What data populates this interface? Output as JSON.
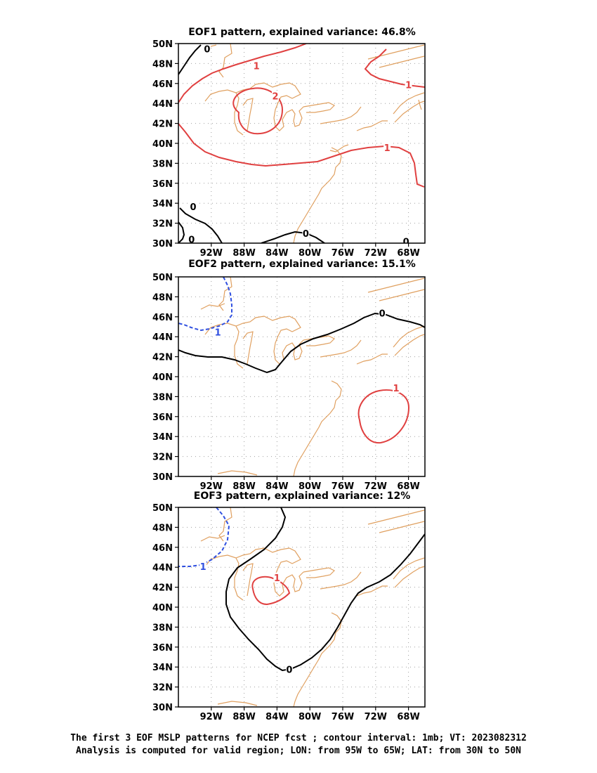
{
  "panels": [
    {
      "title": "EOF1 pattern, explained variance: 46.8%",
      "contour_labels": [
        {
          "text": "0",
          "color": "#000000",
          "lon": -92.5,
          "lat": 49.4
        },
        {
          "text": "1",
          "color": "#e04040",
          "lon": -86.5,
          "lat": 47.7
        },
        {
          "text": "2",
          "color": "#e04040",
          "lon": -84.2,
          "lat": 44.7
        },
        {
          "text": "1",
          "color": "#e04040",
          "lon": -68.0,
          "lat": 45.8
        },
        {
          "text": "1",
          "color": "#e04040",
          "lon": -70.6,
          "lat": 39.5
        },
        {
          "text": "0",
          "color": "#000000",
          "lon": -94.2,
          "lat": 33.6
        },
        {
          "text": "0",
          "color": "#000000",
          "lon": -94.4,
          "lat": 30.3
        },
        {
          "text": "0",
          "color": "#000000",
          "lon": -80.5,
          "lat": 30.9
        },
        {
          "text": "0",
          "color": "#000000",
          "lon": -68.3,
          "lat": 30.1
        }
      ]
    },
    {
      "title": "EOF2 pattern, explained variance: 15.1%",
      "contour_labels": [
        {
          "text": "1",
          "color": "#3050e0",
          "lon": -91.2,
          "lat": 44.4
        },
        {
          "text": "0",
          "color": "#000000",
          "lon": -71.2,
          "lat": 46.3
        },
        {
          "text": "1",
          "color": "#e04040",
          "lon": -69.5,
          "lat": 38.8
        }
      ]
    },
    {
      "title": "EOF3 pattern, explained variance: 12%",
      "contour_labels": [
        {
          "text": "1",
          "color": "#3050e0",
          "lon": -93.0,
          "lat": 44.0
        },
        {
          "text": "1",
          "color": "#e04040",
          "lon": -84.0,
          "lat": 42.9
        },
        {
          "text": "0",
          "color": "#000000",
          "lon": -82.5,
          "lat": 33.7
        }
      ]
    }
  ],
  "axes": {
    "lon_range": [
      -96,
      -66
    ],
    "lat_range": [
      30,
      50
    ],
    "x_ticks": [
      -92,
      -88,
      -84,
      -80,
      -76,
      -72,
      -68
    ],
    "x_tick_labels": [
      "92W",
      "88W",
      "84W",
      "80W",
      "76W",
      "72W",
      "68W"
    ],
    "y_ticks": [
      30,
      32,
      34,
      36,
      38,
      40,
      42,
      44,
      46,
      48,
      50
    ],
    "y_tick_labels": [
      "30N",
      "32N",
      "34N",
      "36N",
      "38N",
      "40N",
      "42N",
      "44N",
      "46N",
      "48N",
      "50N"
    ],
    "grid": "dotted"
  },
  "colors": {
    "coastline": "#e0a060",
    "positive": "#e04040",
    "negative": "#3050e0",
    "zero": "#000000",
    "grid": "#a0a0a0"
  },
  "caption": {
    "line1": "The first 3 EOF MSLP patterns for NCEP fcst ; contour interval: 1mb; VT: 2023082312",
    "line2": "Analysis is computed for valid region; LON: from 95W to 65W; LAT: from 30N to 50N"
  }
}
